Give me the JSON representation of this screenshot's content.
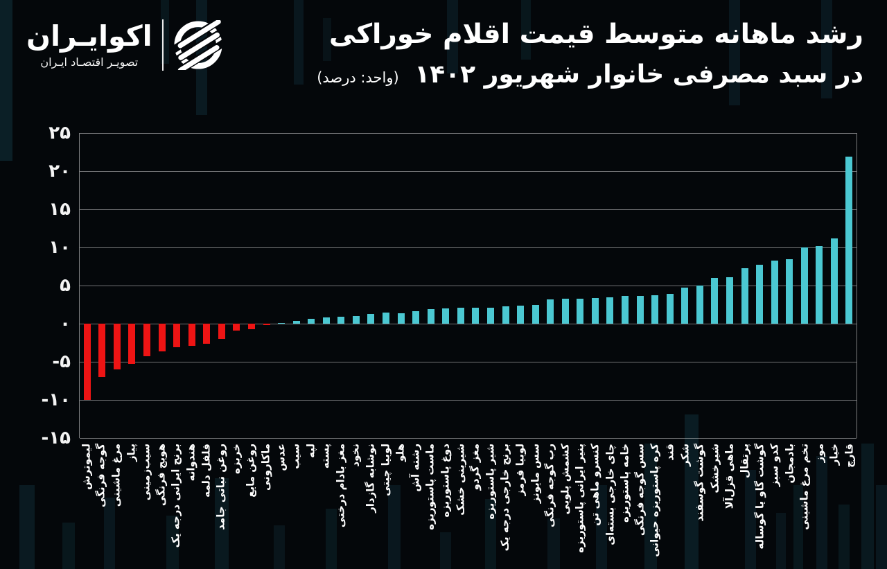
{
  "header": {
    "brand_name": "اکوایـران",
    "brand_tagline": "تصویـر اقتصـاد ایـران",
    "title_line1": "رشد ماهانه متوسط قیمت اقلام خوراکی",
    "title_line2": "در سبد مصرفی خانوار شهریور ۱۴۰۲",
    "title_unit": "(واحد: درصد)"
  },
  "chart_data": {
    "type": "bar",
    "title": "رشد ماهانه متوسط قیمت اقلام خوراکی در سبد مصرفی خانوار شهریور ۱۴۰۲",
    "unit": "درصد",
    "ylim": [
      -15,
      25
    ],
    "ytick_step": 5,
    "ytick_labels": [
      "۲۵",
      "۲۰",
      "۱۵",
      "۱۰",
      "۵",
      "۰",
      "-۵",
      "-۱۰",
      "-۱۵"
    ],
    "grid": true,
    "legend": "none",
    "colors": {
      "positive": "#4bc8d2",
      "negative": "#ee1414",
      "grid": "#e1e1e1",
      "background": "#04070a",
      "text": "#ffffff"
    },
    "categories": [
      "لیموترش",
      "گوجه فرنگی",
      "مرغ ماشینی",
      "پیاز",
      "سیب‌زمینی",
      "هویج فرنگی",
      "برنج ایرانی درجه یک",
      "هندوانه",
      "فلفل دلمه",
      "روغن نباتی جامد",
      "خربزه",
      "روغن مایع",
      "ماکارونی",
      "عدس",
      "سیب",
      "لپه",
      "پسته",
      "مغز بادام درختی",
      "نخود",
      "نوشابه گازدار",
      "لوبیا چیتی",
      "هلو",
      "رشته آش",
      "ماست پاستوریزه",
      "دوغ پاستوریزه",
      "شیرینی خشک",
      "مغز گردو",
      "شیر پاستوریزه",
      "برنج خارجی درجه یک",
      "لوبیا قرمز",
      "سس مایونز",
      "رب گوجه فرنگی",
      "کشمش پلویی",
      "پنیر ایرانی پاستوریزه",
      "کنسرو ماهی تن",
      "چای خارجی بسته‌ای",
      "خامه پاستوریزه",
      "سس گوجه فرنگی",
      "کره پاستوریزه حیوانی",
      "قند",
      "شکر",
      "گوشت گوسفند",
      "شیرخشک",
      "ماهی قزل‌آلا",
      "پرتقال",
      "گوشت گاو یا گوساله",
      "کدو سبز",
      "بادمجان",
      "تخم مرغ ماشینی",
      "موز",
      "خیار",
      "قارچ"
    ],
    "values": [
      -10.0,
      -7.0,
      -6.0,
      -5.3,
      -4.3,
      -3.6,
      -3.1,
      -2.9,
      -2.6,
      -2.0,
      -0.9,
      -0.7,
      -0.2,
      0.1,
      0.4,
      0.6,
      0.8,
      0.9,
      1.0,
      1.3,
      1.5,
      1.4,
      1.6,
      1.9,
      2.0,
      2.1,
      2.1,
      2.1,
      2.3,
      2.4,
      2.5,
      3.2,
      3.3,
      3.3,
      3.4,
      3.5,
      3.6,
      3.6,
      3.7,
      3.9,
      4.7,
      5.0,
      6.0,
      6.1,
      7.3,
      7.7,
      8.3,
      8.5,
      10.0,
      10.2,
      11.2,
      21.9
    ]
  }
}
